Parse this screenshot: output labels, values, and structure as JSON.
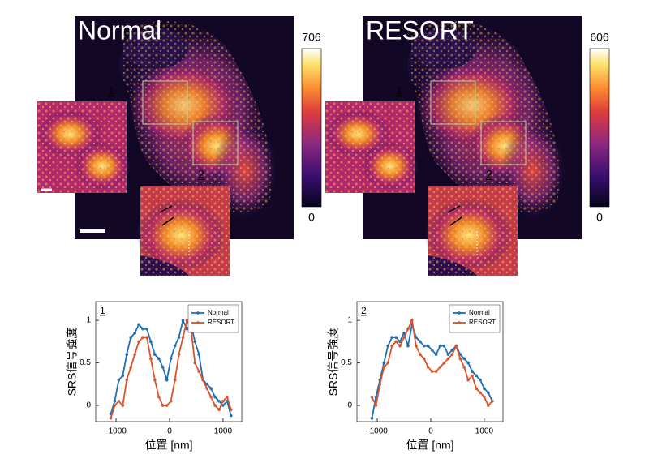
{
  "panels": [
    {
      "label": "Normal",
      "colorbar": {
        "lim": [
          0,
          706
        ],
        "ticks": [
          0,
          706
        ]
      },
      "insets": [
        "1",
        "2"
      ]
    },
    {
      "label": "RESORT",
      "colorbar": {
        "lim": [
          0,
          606
        ],
        "ticks": [
          0,
          606
        ]
      },
      "insets": [
        "1",
        "2"
      ]
    }
  ],
  "chart_data": [
    {
      "type": "line",
      "title": "1",
      "xlabel": "位置 [nm]",
      "ylabel": "SRS信号強度",
      "x": [
        -1100,
        -1025,
        -950,
        -875,
        -800,
        -725,
        -650,
        -575,
        -500,
        -425,
        -350,
        -275,
        -200,
        -125,
        -50,
        25,
        100,
        175,
        250,
        325,
        400,
        475,
        550,
        625,
        700,
        775,
        850,
        925,
        1000,
        1075,
        1150
      ],
      "series": [
        {
          "name": "Normal",
          "color": "#1f6fb4",
          "values": [
            -0.1,
            0.05,
            0.3,
            0.35,
            0.6,
            0.8,
            0.85,
            0.95,
            0.9,
            0.9,
            0.75,
            0.6,
            0.55,
            0.45,
            0.3,
            0.55,
            0.7,
            0.8,
            1.0,
            0.9,
            0.95,
            0.75,
            0.6,
            0.3,
            0.25,
            0.2,
            0.1,
            0.05,
            0.0,
            0.05,
            -0.12
          ]
        },
        {
          "name": "RESORT",
          "color": "#d9542b",
          "values": [
            -0.15,
            0.0,
            0.05,
            0.0,
            0.3,
            0.45,
            0.6,
            0.75,
            0.8,
            0.8,
            0.55,
            0.3,
            0.1,
            0.0,
            0.0,
            0.05,
            0.3,
            0.6,
            0.8,
            1.0,
            0.9,
            0.5,
            0.4,
            0.3,
            0.2,
            0.1,
            0.0,
            -0.05,
            0.05,
            0.1,
            -0.05
          ]
        }
      ],
      "xlim": [
        -1380,
        1350
      ],
      "xticks": [
        -1000,
        0,
        1000
      ],
      "ylim": [
        -0.19,
        1.22
      ],
      "yticks": [
        0,
        0.5,
        1
      ],
      "legend": "upper right"
    },
    {
      "type": "line",
      "title": "2",
      "xlabel": "位置 [nm]",
      "ylabel": "SRS信号強度",
      "x": [
        -1100,
        -1025,
        -950,
        -875,
        -800,
        -725,
        -650,
        -575,
        -500,
        -425,
        -350,
        -275,
        -200,
        -125,
        -50,
        25,
        100,
        175,
        250,
        325,
        400,
        475,
        550,
        625,
        700,
        775,
        850,
        925,
        1000,
        1075,
        1150
      ],
      "series": [
        {
          "name": "Normal",
          "color": "#1f6fb4",
          "values": [
            -0.15,
            0.1,
            0.3,
            0.5,
            0.7,
            0.8,
            0.8,
            0.75,
            0.85,
            0.7,
            0.95,
            0.8,
            0.75,
            0.7,
            0.7,
            0.65,
            0.6,
            0.7,
            0.7,
            0.6,
            0.65,
            0.7,
            0.6,
            0.55,
            0.5,
            0.4,
            0.35,
            0.3,
            0.2,
            0.15,
            0.05
          ]
        },
        {
          "name": "RESORT",
          "color": "#d9542b",
          "values": [
            0.1,
            0.0,
            0.25,
            0.45,
            0.5,
            0.7,
            0.75,
            0.7,
            0.8,
            0.9,
            1.0,
            0.7,
            0.6,
            0.55,
            0.45,
            0.4,
            0.4,
            0.45,
            0.5,
            0.55,
            0.6,
            0.7,
            0.55,
            0.45,
            0.3,
            0.35,
            0.2,
            0.15,
            0.1,
            0.0,
            0.05
          ]
        }
      ],
      "xlim": [
        -1380,
        1350
      ],
      "xticks": [
        -1000,
        0,
        1000
      ],
      "ylim": [
        -0.19,
        1.22
      ],
      "yticks": [
        0,
        0.5,
        1
      ],
      "legend": "upper right"
    }
  ]
}
